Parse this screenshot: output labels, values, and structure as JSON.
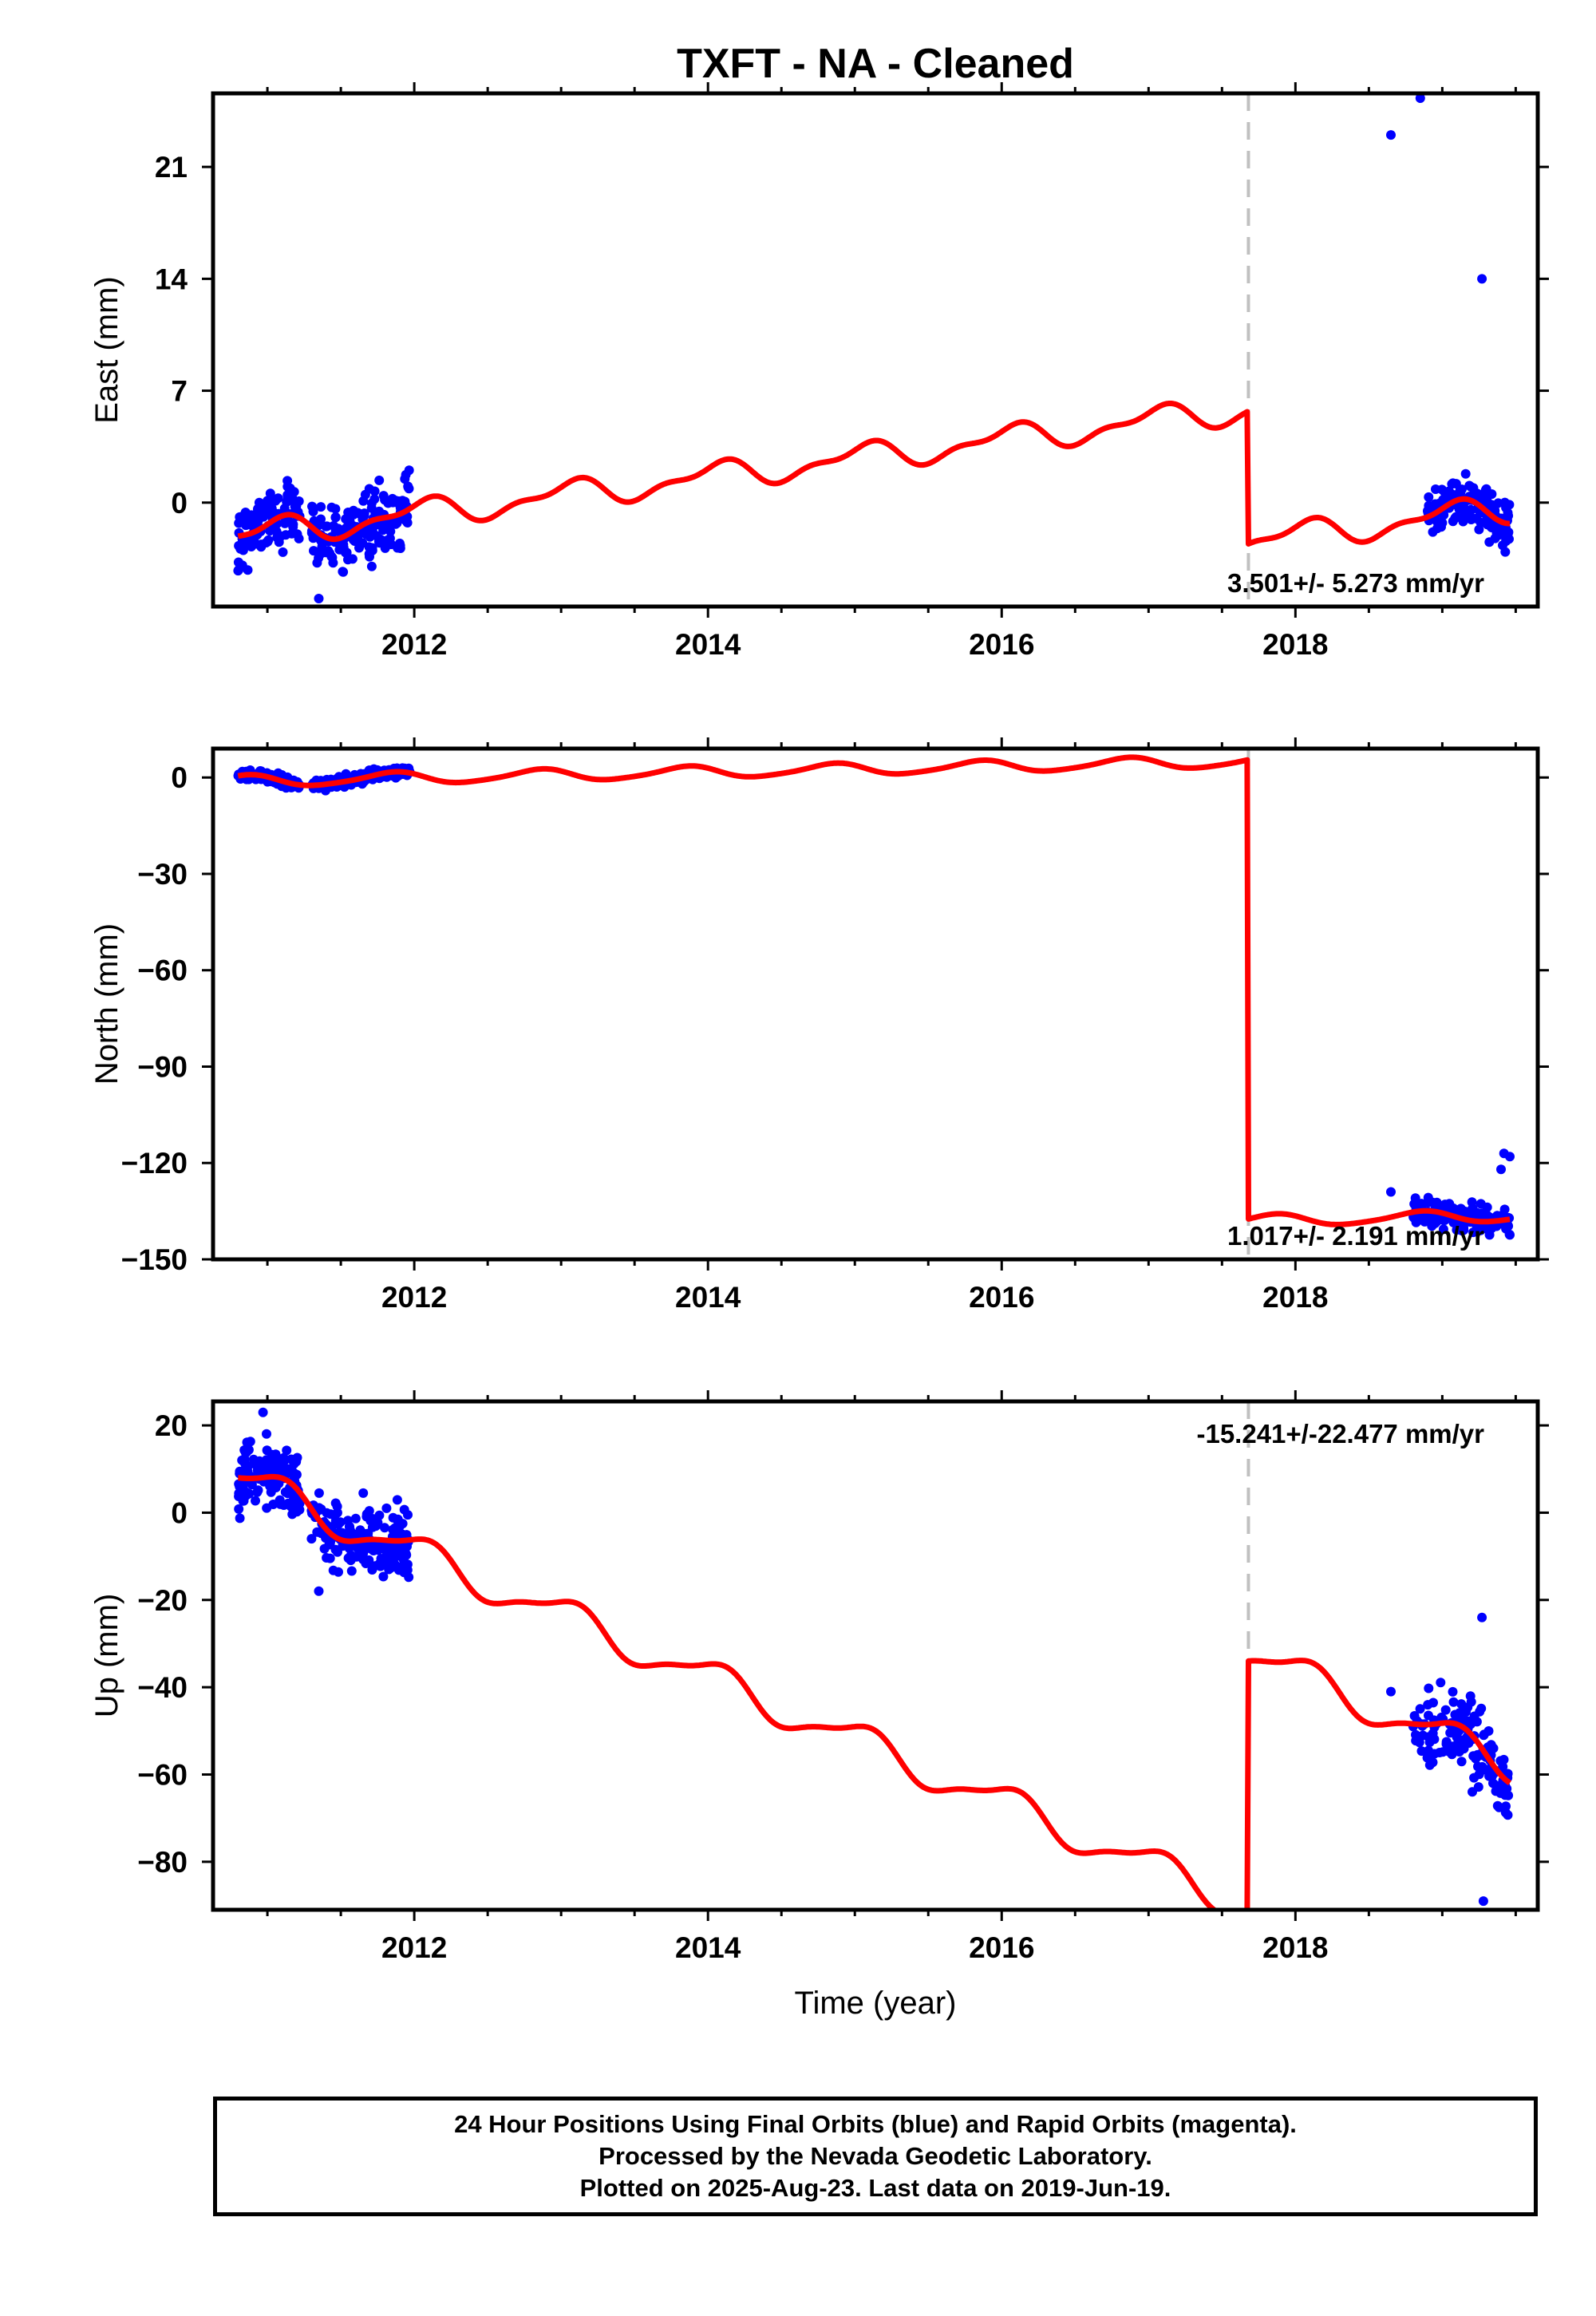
{
  "title": "TXFT  - NA - Cleaned",
  "xlabel": "Time (year)",
  "colors": {
    "final_points": "#0000ff",
    "model": "#ff0000",
    "break": "#c0c0c0"
  },
  "footer": {
    "line1": "24 Hour Positions Using Final Orbits (blue) and Rapid Orbits (magenta).",
    "line2": "Processed by the Nevada Geodetic Laboratory.",
    "line3": "Plotted on 2025-Aug-23. Last data on 2019-Jun-19."
  },
  "chart_data": [
    {
      "type": "scatter",
      "name": "east",
      "ylabel": "East (mm)",
      "xlim": [
        2010.63,
        2019.65
      ],
      "ylim": [
        -6.5,
        25.6
      ],
      "xticks": [
        2012,
        2014,
        2016,
        2018
      ],
      "yticks": [
        0,
        7,
        14,
        21
      ],
      "rate_label": "3.501+/- 5.273 mm/yr",
      "rate_position": "bottom-right",
      "break_epochs": [
        2017.68
      ],
      "model": {
        "t0": 2010.8,
        "offset": -2.1,
        "rate": 1.16,
        "segments": [
          {
            "from": 2010.8,
            "to": 2017.68,
            "jump": 0
          },
          {
            "from": 2017.68,
            "to": 2019.46,
            "jump": -8.3
          }
        ],
        "annual": {
          "amp": 0.75,
          "phase": 0.0
        },
        "semiannual": {
          "amp": 0.35,
          "phase": 0.5
        }
      },
      "clusters": [
        {
          "start": 2010.8,
          "end": 2011.97,
          "n": 320,
          "spread": 1.4,
          "gaps": [
            [
              2011.22,
              2011.3
            ]
          ]
        },
        {
          "start": 2018.9,
          "end": 2019.46,
          "n": 170,
          "spread": 1.0,
          "gaps": []
        }
      ],
      "outliers": [
        {
          "x": 2011.35,
          "y": -6.0
        },
        {
          "x": 2018.65,
          "y": 23.0
        },
        {
          "x": 2018.85,
          "y": 25.3
        },
        {
          "x": 2019.27,
          "y": 14.0
        }
      ]
    },
    {
      "type": "scatter",
      "name": "north",
      "ylabel": "North (mm)",
      "xlim": [
        2010.63,
        2019.65
      ],
      "ylim": [
        -150,
        9
      ],
      "xticks": [
        2012,
        2014,
        2016,
        2018
      ],
      "yticks": [
        0,
        -30,
        -60,
        -90,
        -120,
        -150
      ],
      "rate_label": "1.017+/- 2.191 mm/yr",
      "rate_position": "bottom-right",
      "break_epochs": [
        2017.68
      ],
      "model": {
        "t0": 2010.8,
        "offset": -1.2,
        "rate": 0.9,
        "segments": [
          {
            "from": 2010.8,
            "to": 2017.68,
            "jump": 0
          },
          {
            "from": 2017.68,
            "to": 2019.46,
            "jump": -143.0
          }
        ],
        "annual": {
          "amp": 1.8,
          "phase": 0.2
        },
        "semiannual": {
          "amp": 0.3,
          "phase": 0.0
        }
      },
      "clusters": [
        {
          "start": 2010.8,
          "end": 2011.97,
          "n": 320,
          "spread": 1.2,
          "gaps": [
            [
              2011.22,
              2011.3
            ]
          ]
        },
        {
          "start": 2018.8,
          "end": 2019.46,
          "n": 150,
          "spread": 2.8,
          "gaps": []
        }
      ],
      "outliers": [
        {
          "x": 2018.65,
          "y": -129.0
        },
        {
          "x": 2019.42,
          "y": -117.0
        },
        {
          "x": 2019.46,
          "y": -118.0
        },
        {
          "x": 2019.4,
          "y": -122.0
        }
      ]
    },
    {
      "type": "scatter",
      "name": "up",
      "ylabel": "Up (mm)",
      "xlim": [
        2010.63,
        2019.65
      ],
      "ylim": [
        -91,
        25.5
      ],
      "xticks": [
        2012,
        2014,
        2016,
        2018
      ],
      "yticks": [
        20,
        0,
        -20,
        -40,
        -60,
        -80
      ],
      "rate_label": "-15.241+/-22.477 mm/yr",
      "rate_position": "top-right",
      "break_epochs": [
        2017.68
      ],
      "model": {
        "t0": 2010.8,
        "offset": 8.0,
        "rate": -14.3,
        "segments": [
          {
            "from": 2010.8,
            "to": 2017.68,
            "jump": 0
          },
          {
            "from": 2017.68,
            "to": 2019.46,
            "jump": 58.0
          }
        ],
        "annual": {
          "amp": 3.8,
          "phase": 0.0
        },
        "semiannual": {
          "amp": 1.0,
          "phase": 0.5
        }
      },
      "clusters": [
        {
          "start": 2010.8,
          "end": 2011.97,
          "n": 320,
          "spread": 5.5,
          "gaps": [
            [
              2011.22,
              2011.3
            ]
          ]
        },
        {
          "start": 2018.8,
          "end": 2019.46,
          "n": 140,
          "spread": 6.0,
          "gaps": []
        }
      ],
      "outliers": [
        {
          "x": 2010.97,
          "y": 23.0
        },
        {
          "x": 2011.35,
          "y": -18.0
        },
        {
          "x": 2018.65,
          "y": -41.0
        },
        {
          "x": 2019.27,
          "y": -24.0
        },
        {
          "x": 2019.28,
          "y": -89.0
        }
      ]
    }
  ]
}
